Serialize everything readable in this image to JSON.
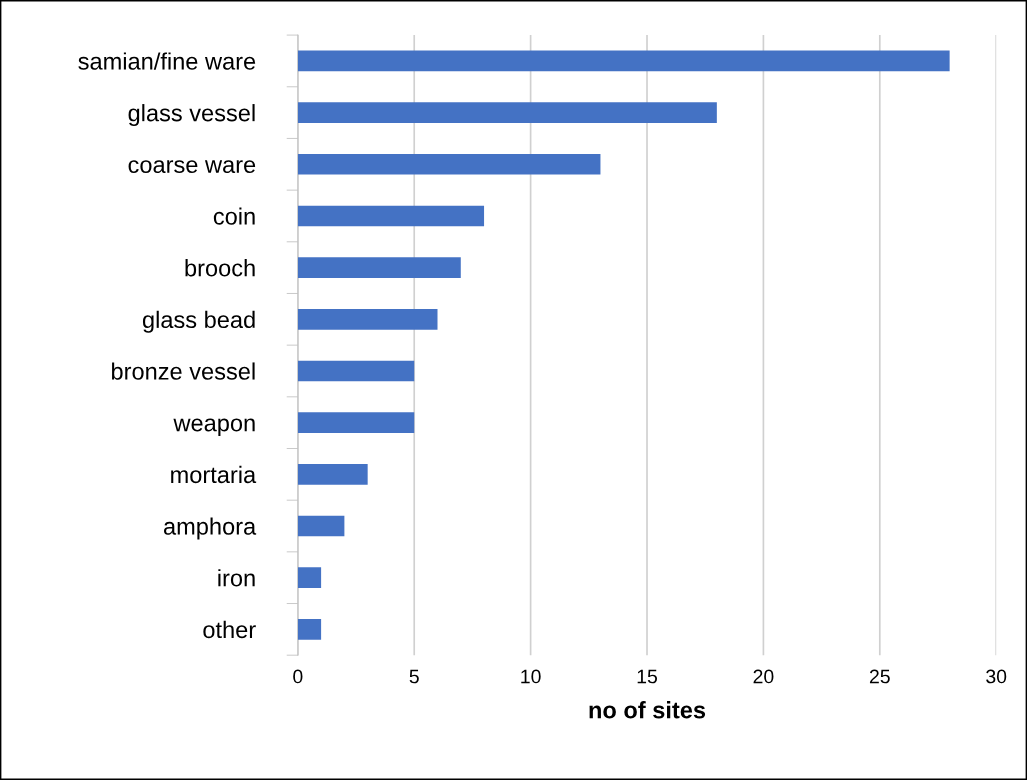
{
  "chart_data": {
    "type": "bar",
    "orientation": "horizontal",
    "xlabel": "no of sites",
    "categories": [
      "samian/fine ware",
      "glass vessel",
      "coarse ware",
      "coin",
      "brooch",
      "glass bead",
      "bronze vessel",
      "weapon",
      "mortaria",
      "amphora",
      "iron",
      "other"
    ],
    "values": [
      28,
      18,
      13,
      8,
      7,
      6,
      5,
      5,
      3,
      2,
      1,
      1
    ],
    "color": "#4472c4",
    "xlim": [
      0,
      30
    ],
    "xticks": [
      0,
      5,
      10,
      15,
      20,
      25,
      30
    ],
    "grid": "x"
  }
}
